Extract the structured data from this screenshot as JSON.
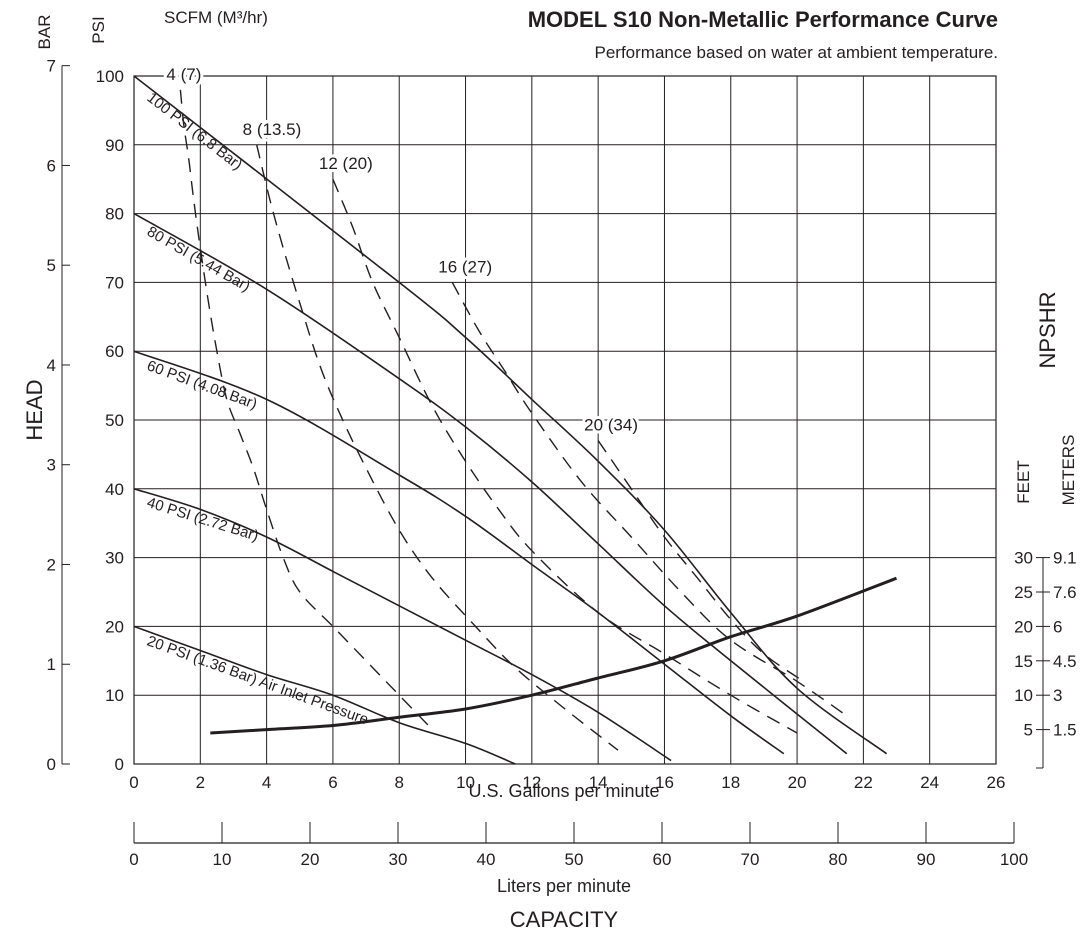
{
  "chart_data": {
    "type": "line",
    "title": "MODEL S10 Non-Metallic Performance Curve",
    "subtitle": "Performance based on water at ambient temperature.",
    "x_axis": {
      "label": "U.S. Gallons per minute",
      "range": [
        0,
        26
      ],
      "ticks": [
        0,
        2,
        4,
        6,
        8,
        10,
        12,
        14,
        16,
        18,
        20,
        22,
        24,
        26
      ]
    },
    "x_axis_secondary": {
      "label": "Liters per minute",
      "range": [
        0,
        100
      ],
      "ticks": [
        0,
        10,
        20,
        30,
        40,
        50,
        60,
        70,
        80,
        90,
        100
      ]
    },
    "capacity_label": "CAPACITY",
    "y_axis": {
      "label": "HEAD",
      "psi_label": "PSI",
      "bar_label": "BAR",
      "range": [
        0,
        100
      ],
      "psi_ticks": [
        0,
        10,
        20,
        30,
        40,
        50,
        60,
        70,
        80,
        90,
        100
      ],
      "bar_ticks": [
        0,
        1,
        2,
        3,
        4,
        5,
        6,
        7
      ]
    },
    "npshr_axis": {
      "label": "NPSHR",
      "feet_label": "FEET",
      "meters_label": "METERS",
      "feet_ticks": [
        5,
        10,
        15,
        20,
        25,
        30
      ],
      "meters_ticks": [
        "1.5",
        "3",
        "4.5",
        "6",
        "7.6",
        "9.1"
      ]
    },
    "scfm_label": "SCFM (M³/hr)",
    "grid": true,
    "pressure_series": [
      {
        "name": "100 PSI (6.8 Bar)",
        "points": [
          [
            0,
            100
          ],
          [
            8,
            70
          ],
          [
            10,
            62
          ],
          [
            12,
            53
          ],
          [
            14,
            44
          ],
          [
            16,
            34
          ],
          [
            18,
            22
          ],
          [
            20,
            11
          ],
          [
            22.7,
            1.5
          ]
        ]
      },
      {
        "name": "80 PSI (5.44 Bar)",
        "points": [
          [
            0,
            80
          ],
          [
            4,
            69
          ],
          [
            8,
            56
          ],
          [
            10,
            49
          ],
          [
            12,
            41
          ],
          [
            14,
            32
          ],
          [
            16,
            23
          ],
          [
            18,
            15
          ],
          [
            21.5,
            1.5
          ]
        ]
      },
      {
        "name": "60 PSI (4.08 Bar)",
        "points": [
          [
            0,
            60
          ],
          [
            4,
            53
          ],
          [
            8,
            42
          ],
          [
            10,
            36
          ],
          [
            12,
            29
          ],
          [
            14,
            22
          ],
          [
            16,
            14.5
          ],
          [
            18,
            7
          ],
          [
            19.6,
            1.5
          ]
        ]
      },
      {
        "name": "40 PSI (2.72 Bar)",
        "points": [
          [
            0,
            40
          ],
          [
            2,
            37
          ],
          [
            4,
            33
          ],
          [
            6,
            28
          ],
          [
            8,
            23
          ],
          [
            10,
            18
          ],
          [
            12,
            13
          ],
          [
            14,
            7.5
          ],
          [
            16.2,
            0.5
          ]
        ]
      },
      {
        "name": "20 PSI (1.36 Bar) Air Inlet Pressure",
        "points": [
          [
            0,
            20
          ],
          [
            2,
            16.5
          ],
          [
            4,
            13
          ],
          [
            6,
            10
          ],
          [
            8,
            6
          ],
          [
            10,
            3
          ],
          [
            11.5,
            0
          ]
        ]
      }
    ],
    "air_consumption_series": [
      {
        "name": "4 (7)",
        "points": [
          [
            1.4,
            98
          ],
          [
            1.5,
            93
          ],
          [
            1.65,
            88
          ],
          [
            1.8,
            82
          ],
          [
            2.0,
            75
          ],
          [
            2.25,
            67
          ],
          [
            2.5,
            60
          ],
          [
            2.8,
            53
          ],
          [
            3.2,
            48
          ],
          [
            3.6,
            43
          ],
          [
            4.0,
            37
          ],
          [
            4.5,
            30
          ],
          [
            5.0,
            25
          ],
          [
            6.0,
            20
          ],
          [
            7.0,
            15
          ],
          [
            8.0,
            10
          ],
          [
            9.0,
            5
          ]
        ]
      },
      {
        "name": "8 (13.5)",
        "points": [
          [
            3.7,
            90
          ],
          [
            4.1,
            82
          ],
          [
            4.5,
            75
          ],
          [
            5.0,
            67
          ],
          [
            5.6,
            58
          ],
          [
            6.2,
            51
          ],
          [
            7.0,
            43
          ],
          [
            8.0,
            34
          ],
          [
            9.0,
            27
          ],
          [
            10.3,
            20
          ],
          [
            11.5,
            14
          ],
          [
            13.0,
            8
          ],
          [
            14.6,
            2
          ]
        ]
      },
      {
        "name": "12 (20)",
        "points": [
          [
            6.0,
            85
          ],
          [
            6.6,
            78
          ],
          [
            7.2,
            70
          ],
          [
            8.0,
            62
          ],
          [
            9.0,
            52
          ],
          [
            10.0,
            44
          ],
          [
            11.0,
            37
          ],
          [
            12.0,
            31
          ],
          [
            14.0,
            22
          ],
          [
            16.0,
            16
          ],
          [
            18.0,
            10
          ],
          [
            20.0,
            4.5
          ]
        ]
      },
      {
        "name": "16 (27)",
        "points": [
          [
            9.6,
            70
          ],
          [
            10.4,
            63
          ],
          [
            11.2,
            57
          ],
          [
            12.0,
            51
          ],
          [
            13.5,
            41
          ],
          [
            15.0,
            33
          ],
          [
            16.5,
            25
          ],
          [
            18.0,
            18
          ],
          [
            20.0,
            12
          ],
          [
            21.5,
            7
          ]
        ]
      },
      {
        "name": "20 (34)",
        "points": [
          [
            14.0,
            47
          ],
          [
            15.0,
            40
          ],
          [
            16.0,
            33
          ],
          [
            17.0,
            27
          ],
          [
            18.0,
            21
          ],
          [
            19.0,
            16
          ],
          [
            20.2,
            12
          ]
        ]
      }
    ],
    "npshr_series": {
      "name": "NPSHR",
      "points": [
        [
          2.3,
          4.5
        ],
        [
          4,
          5
        ],
        [
          6,
          5.6
        ],
        [
          8,
          6.8
        ],
        [
          10,
          8
        ],
        [
          12,
          10
        ],
        [
          14,
          12.5
        ],
        [
          16,
          15
        ],
        [
          18,
          18.5
        ],
        [
          20,
          21.5
        ],
        [
          23,
          27
        ]
      ]
    }
  }
}
